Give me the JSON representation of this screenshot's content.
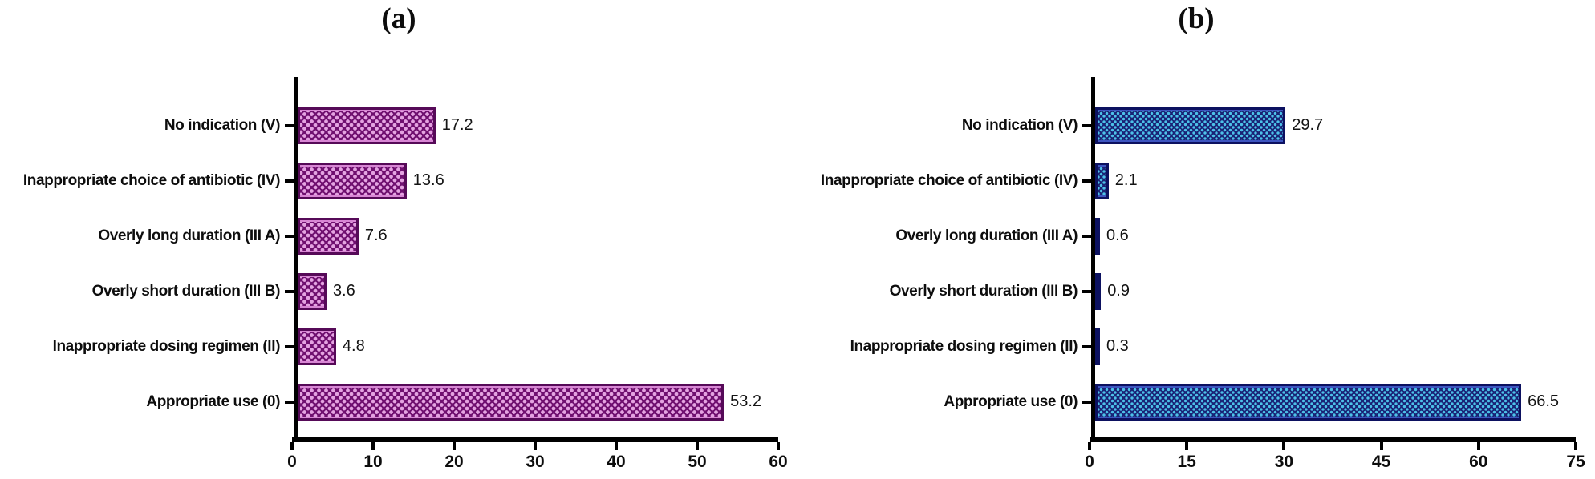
{
  "chart_data": [
    {
      "type": "bar",
      "orientation": "horizontal",
      "panel_label": "(a)",
      "categories": [
        "No indication (V)",
        "Inappropriate choice of antibiotic (IV)",
        "Overly long duration (III A)",
        "Overly short duration (III B)",
        "Inappropriate dosing regimen (II)",
        "Appropriate use (0)"
      ],
      "values": [
        17.2,
        13.6,
        7.6,
        3.6,
        4.8,
        53.2
      ],
      "value_labels": [
        "17.2",
        "13.6",
        "7.6",
        "3.6",
        "4.8",
        "53.2"
      ],
      "xlim": [
        0,
        60
      ],
      "xticks": [
        "0",
        "10",
        "20",
        "30",
        "40",
        "50",
        "60"
      ],
      "grid": false,
      "legend": false,
      "colors": {
        "fill_dark": "#701070",
        "fill_light": "#e4a3e1",
        "border": "#560a58",
        "edge_highlight": "#d886d4"
      }
    },
    {
      "type": "bar",
      "orientation": "horizontal",
      "panel_label": "(b)",
      "categories": [
        "No indication (V)",
        "Inappropriate choice of antibiotic (IV)",
        "Overly long duration (III A)",
        "Overly short duration (III B)",
        "Inappropriate dosing regimen (II)",
        "Appropriate use (0)"
      ],
      "values": [
        29.7,
        2.1,
        0.6,
        0.9,
        0.3,
        66.5
      ],
      "value_labels": [
        "29.7",
        "2.1",
        "0.6",
        "0.9",
        "0.3",
        "66.5"
      ],
      "xlim": [
        0,
        75
      ],
      "xticks": [
        "0",
        "15",
        "30",
        "45",
        "60",
        "75"
      ],
      "grid": false,
      "legend": false,
      "colors": {
        "fill_dark": "#1a2376",
        "fill_light": "#4cc2e8",
        "border": "#0c1160",
        "edge_highlight": "#3d55c0"
      }
    }
  ]
}
